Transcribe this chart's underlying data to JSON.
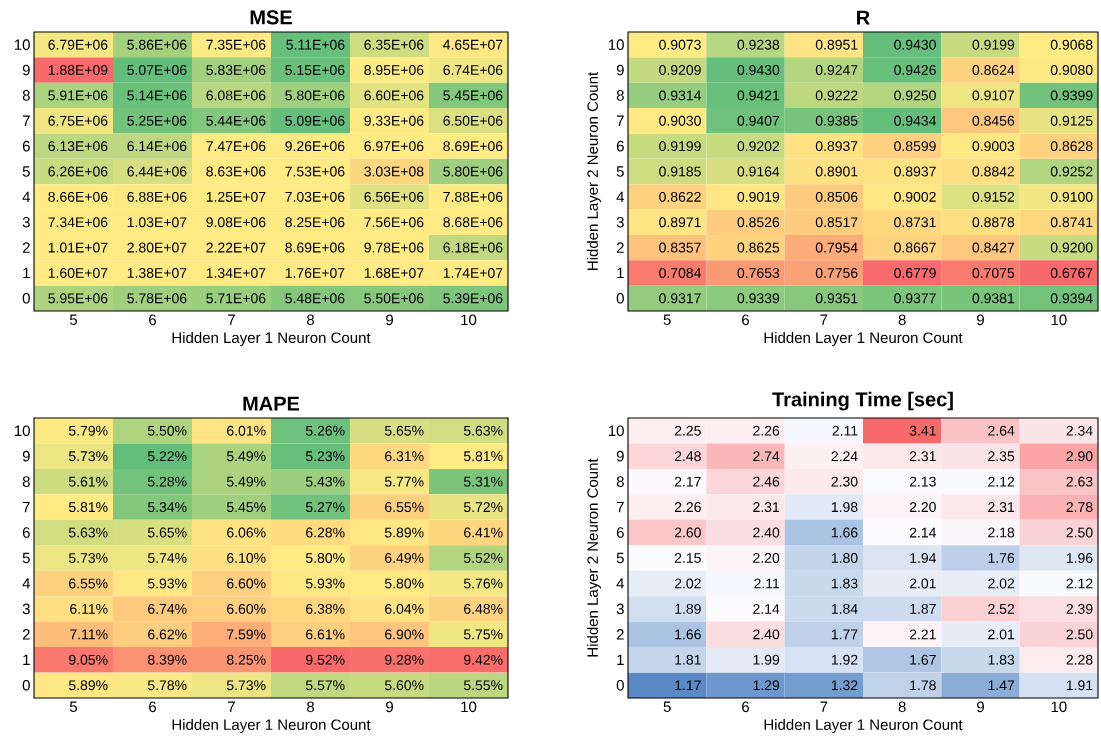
{
  "chart_data": [
    {
      "type": "heatmap",
      "title": "MSE",
      "xlabel": "Hidden Layer 1 Neuron Count",
      "categories": [
        "5",
        "6",
        "7",
        "8",
        "9",
        "10"
      ],
      "y_categories": [
        "10",
        "9",
        "8",
        "7",
        "6",
        "5",
        "4",
        "3",
        "2",
        "1",
        "0"
      ],
      "colors": [
        "#63be7b",
        "#ffeb84",
        "#f8696b"
      ],
      "cells": [
        [
          6790000.0,
          5860000.0,
          7350000.0,
          5110000.0,
          6350000.0,
          46500000.0
        ],
        [
          1880000000.0,
          5070000.0,
          5830000.0,
          5150000.0,
          8950000.0,
          6740000.0
        ],
        [
          5910000.0,
          5140000.0,
          6080000.0,
          5800000.0,
          6600000.0,
          5450000.0
        ],
        [
          6750000.0,
          5250000.0,
          5440000.0,
          5090000.0,
          9330000.0,
          6500000.0
        ],
        [
          6130000.0,
          6140000.0,
          7470000.0,
          9260000.0,
          6970000.0,
          8690000.0
        ],
        [
          6260000.0,
          6440000.0,
          8630000.0,
          7530000.0,
          303000000.0,
          5800000.0
        ],
        [
          8660000.0,
          6880000.0,
          12500000.0,
          7030000.0,
          6560000.0,
          7880000.0
        ],
        [
          7340000.0,
          10300000.0,
          9080000.0,
          8250000.0,
          7560000.0,
          8680000.0
        ],
        [
          10100000.0,
          28000000.0,
          22200000.0,
          8690000.0,
          9780000.0,
          6180000.0
        ],
        [
          16000000.0,
          13800000.0,
          13400000.0,
          17600000.0,
          16800000.0,
          17400000.0
        ],
        [
          5950000.0,
          5780000.0,
          5710000.0,
          5480000.0,
          5500000.0,
          5390000.0
        ]
      ],
      "cell_labels": [
        [
          "6.79E+06",
          "5.86E+06",
          "7.35E+06",
          "5.11E+06",
          "6.35E+06",
          "4.65E+07"
        ],
        [
          "1.88E+09",
          "5.07E+06",
          "5.83E+06",
          "5.15E+06",
          "8.95E+06",
          "6.74E+06"
        ],
        [
          "5.91E+06",
          "5.14E+06",
          "6.08E+06",
          "5.80E+06",
          "6.60E+06",
          "5.45E+06"
        ],
        [
          "6.75E+06",
          "5.25E+06",
          "5.44E+06",
          "5.09E+06",
          "9.33E+06",
          "6.50E+06"
        ],
        [
          "6.13E+06",
          "6.14E+06",
          "7.47E+06",
          "9.26E+06",
          "6.97E+06",
          "8.69E+06"
        ],
        [
          "6.26E+06",
          "6.44E+06",
          "8.63E+06",
          "7.53E+06",
          "3.03E+08",
          "5.80E+06"
        ],
        [
          "8.66E+06",
          "6.88E+06",
          "1.25E+07",
          "7.03E+06",
          "6.56E+06",
          "7.88E+06"
        ],
        [
          "7.34E+06",
          "1.03E+07",
          "9.08E+06",
          "8.25E+06",
          "7.56E+06",
          "8.68E+06"
        ],
        [
          "1.01E+07",
          "2.80E+07",
          "2.22E+07",
          "8.69E+06",
          "9.78E+06",
          "6.18E+06"
        ],
        [
          "1.60E+07",
          "1.38E+07",
          "1.34E+07",
          "1.76E+07",
          "1.68E+07",
          "1.74E+07"
        ],
        [
          "5.95E+06",
          "5.78E+06",
          "5.71E+06",
          "5.48E+06",
          "5.50E+06",
          "5.39E+06"
        ]
      ]
    },
    {
      "type": "heatmap",
      "title": "R",
      "xlabel": "Hidden Layer 1 Neuron Count",
      "ylabel": "Hidden Layer 2 Neuron Count",
      "categories": [
        "5",
        "6",
        "7",
        "8",
        "9",
        "10"
      ],
      "y_categories": [
        "10",
        "9",
        "8",
        "7",
        "6",
        "5",
        "4",
        "3",
        "2",
        "1",
        "0"
      ],
      "colors": [
        "#f8696b",
        "#ffeb84",
        "#63be7b"
      ],
      "cells": [
        [
          0.9073,
          0.9238,
          0.8951,
          0.943,
          0.9199,
          0.9068
        ],
        [
          0.9209,
          0.943,
          0.9247,
          0.9426,
          0.8624,
          0.908
        ],
        [
          0.9314,
          0.9421,
          0.9222,
          0.925,
          0.9107,
          0.9399
        ],
        [
          0.903,
          0.9407,
          0.9385,
          0.9434,
          0.8456,
          0.9125
        ],
        [
          0.9199,
          0.9202,
          0.8937,
          0.8599,
          0.9003,
          0.8628
        ],
        [
          0.9185,
          0.9164,
          0.8901,
          0.8937,
          0.8842,
          0.9252
        ],
        [
          0.8622,
          0.9019,
          0.8506,
          0.9002,
          0.9152,
          0.91
        ],
        [
          0.8971,
          0.8526,
          0.8517,
          0.8731,
          0.8878,
          0.8741
        ],
        [
          0.8357,
          0.8625,
          0.7954,
          0.8667,
          0.8427,
          0.92
        ],
        [
          0.7084,
          0.7653,
          0.7756,
          0.6779,
          0.7075,
          0.6767
        ],
        [
          0.9317,
          0.9339,
          0.9351,
          0.9377,
          0.9381,
          0.9394
        ]
      ],
      "cell_labels": [
        [
          "0.9073",
          "0.9238",
          "0.8951",
          "0.9430",
          "0.9199",
          "0.9068"
        ],
        [
          "0.9209",
          "0.9430",
          "0.9247",
          "0.9426",
          "0.8624",
          "0.9080"
        ],
        [
          "0.9314",
          "0.9421",
          "0.9222",
          "0.9250",
          "0.9107",
          "0.9399"
        ],
        [
          "0.9030",
          "0.9407",
          "0.9385",
          "0.9434",
          "0.8456",
          "0.9125"
        ],
        [
          "0.9199",
          "0.9202",
          "0.8937",
          "0.8599",
          "0.9003",
          "0.8628"
        ],
        [
          "0.9185",
          "0.9164",
          "0.8901",
          "0.8937",
          "0.8842",
          "0.9252"
        ],
        [
          "0.8622",
          "0.9019",
          "0.8506",
          "0.9002",
          "0.9152",
          "0.9100"
        ],
        [
          "0.8971",
          "0.8526",
          "0.8517",
          "0.8731",
          "0.8878",
          "0.8741"
        ],
        [
          "0.8357",
          "0.8625",
          "0.7954",
          "0.8667",
          "0.8427",
          "0.9200"
        ],
        [
          "0.7084",
          "0.7653",
          "0.7756",
          "0.6779",
          "0.7075",
          "0.6767"
        ],
        [
          "0.9317",
          "0.9339",
          "0.9351",
          "0.9377",
          "0.9381",
          "0.9394"
        ]
      ]
    },
    {
      "type": "heatmap",
      "title": "MAPE",
      "xlabel": "Hidden Layer 1 Neuron Count",
      "categories": [
        "5",
        "6",
        "7",
        "8",
        "9",
        "10"
      ],
      "y_categories": [
        "10",
        "9",
        "8",
        "7",
        "6",
        "5",
        "4",
        "3",
        "2",
        "1",
        "0"
      ],
      "colors": [
        "#63be7b",
        "#ffeb84",
        "#f8696b"
      ],
      "cells": [
        [
          5.79,
          5.5,
          6.01,
          5.26,
          5.65,
          5.63
        ],
        [
          5.73,
          5.22,
          5.49,
          5.23,
          6.31,
          5.81
        ],
        [
          5.61,
          5.28,
          5.49,
          5.43,
          5.77,
          5.31
        ],
        [
          5.81,
          5.34,
          5.45,
          5.27,
          6.55,
          5.72
        ],
        [
          5.63,
          5.65,
          6.06,
          6.28,
          5.89,
          6.41
        ],
        [
          5.73,
          5.74,
          6.1,
          5.8,
          6.49,
          5.52
        ],
        [
          6.55,
          5.93,
          6.6,
          5.93,
          5.8,
          5.76
        ],
        [
          6.11,
          6.74,
          6.6,
          6.38,
          6.04,
          6.48
        ],
        [
          7.11,
          6.62,
          7.59,
          6.61,
          6.9,
          5.75
        ],
        [
          9.05,
          8.39,
          8.25,
          9.52,
          9.28,
          9.42
        ],
        [
          5.89,
          5.78,
          5.73,
          5.57,
          5.6,
          5.55
        ]
      ],
      "cell_labels": [
        [
          "5.79%",
          "5.50%",
          "6.01%",
          "5.26%",
          "5.65%",
          "5.63%"
        ],
        [
          "5.73%",
          "5.22%",
          "5.49%",
          "5.23%",
          "6.31%",
          "5.81%"
        ],
        [
          "5.61%",
          "5.28%",
          "5.49%",
          "5.43%",
          "5.77%",
          "5.31%"
        ],
        [
          "5.81%",
          "5.34%",
          "5.45%",
          "5.27%",
          "6.55%",
          "5.72%"
        ],
        [
          "5.63%",
          "5.65%",
          "6.06%",
          "6.28%",
          "5.89%",
          "6.41%"
        ],
        [
          "5.73%",
          "5.74%",
          "6.10%",
          "5.80%",
          "6.49%",
          "5.52%"
        ],
        [
          "6.55%",
          "5.93%",
          "6.60%",
          "5.93%",
          "5.80%",
          "5.76%"
        ],
        [
          "6.11%",
          "6.74%",
          "6.60%",
          "6.38%",
          "6.04%",
          "6.48%"
        ],
        [
          "7.11%",
          "6.62%",
          "7.59%",
          "6.61%",
          "6.90%",
          "5.75%"
        ],
        [
          "9.05%",
          "8.39%",
          "8.25%",
          "9.52%",
          "9.28%",
          "9.42%"
        ],
        [
          "5.89%",
          "5.78%",
          "5.73%",
          "5.57%",
          "5.60%",
          "5.55%"
        ]
      ]
    },
    {
      "type": "heatmap",
      "title": "Training Time [sec]",
      "xlabel": "Hidden Layer 1 Neuron Count",
      "ylabel": "Hidden Layer 2 Neuron Count",
      "categories": [
        "5",
        "6",
        "7",
        "8",
        "9",
        "10"
      ],
      "y_categories": [
        "10",
        "9",
        "8",
        "7",
        "6",
        "5",
        "4",
        "3",
        "2",
        "1",
        "0"
      ],
      "colors": [
        "#5a8ac6",
        "#fcfcff",
        "#f8696b"
      ],
      "cells": [
        [
          2.25,
          2.26,
          2.11,
          3.41,
          2.64,
          2.34
        ],
        [
          2.48,
          2.74,
          2.24,
          2.31,
          2.35,
          2.9
        ],
        [
          2.17,
          2.46,
          2.3,
          2.13,
          2.12,
          2.63
        ],
        [
          2.26,
          2.31,
          1.98,
          2.2,
          2.31,
          2.78
        ],
        [
          2.6,
          2.4,
          1.66,
          2.14,
          2.18,
          2.5
        ],
        [
          2.15,
          2.2,
          1.8,
          1.94,
          1.76,
          1.96
        ],
        [
          2.02,
          2.11,
          1.83,
          2.01,
          2.02,
          2.12
        ],
        [
          1.89,
          2.14,
          1.84,
          1.87,
          2.52,
          2.39
        ],
        [
          1.66,
          2.4,
          1.77,
          2.21,
          2.01,
          2.5
        ],
        [
          1.81,
          1.99,
          1.92,
          1.67,
          1.83,
          2.28
        ],
        [
          1.17,
          1.29,
          1.32,
          1.78,
          1.47,
          1.91
        ]
      ],
      "cell_labels": [
        [
          "2.25",
          "2.26",
          "2.11",
          "3.41",
          "2.64",
          "2.34"
        ],
        [
          "2.48",
          "2.74",
          "2.24",
          "2.31",
          "2.35",
          "2.90"
        ],
        [
          "2.17",
          "2.46",
          "2.30",
          "2.13",
          "2.12",
          "2.63"
        ],
        [
          "2.26",
          "2.31",
          "1.98",
          "2.20",
          "2.31",
          "2.78"
        ],
        [
          "2.60",
          "2.40",
          "1.66",
          "2.14",
          "2.18",
          "2.50"
        ],
        [
          "2.15",
          "2.20",
          "1.80",
          "1.94",
          "1.76",
          "1.96"
        ],
        [
          "2.02",
          "2.11",
          "1.83",
          "2.01",
          "2.02",
          "2.12"
        ],
        [
          "1.89",
          "2.14",
          "1.84",
          "1.87",
          "2.52",
          "2.39"
        ],
        [
          "1.66",
          "2.40",
          "1.77",
          "2.21",
          "2.01",
          "2.50"
        ],
        [
          "1.81",
          "1.99",
          "1.92",
          "1.67",
          "1.83",
          "2.28"
        ],
        [
          "1.17",
          "1.29",
          "1.32",
          "1.78",
          "1.47",
          "1.91"
        ]
      ]
    }
  ]
}
